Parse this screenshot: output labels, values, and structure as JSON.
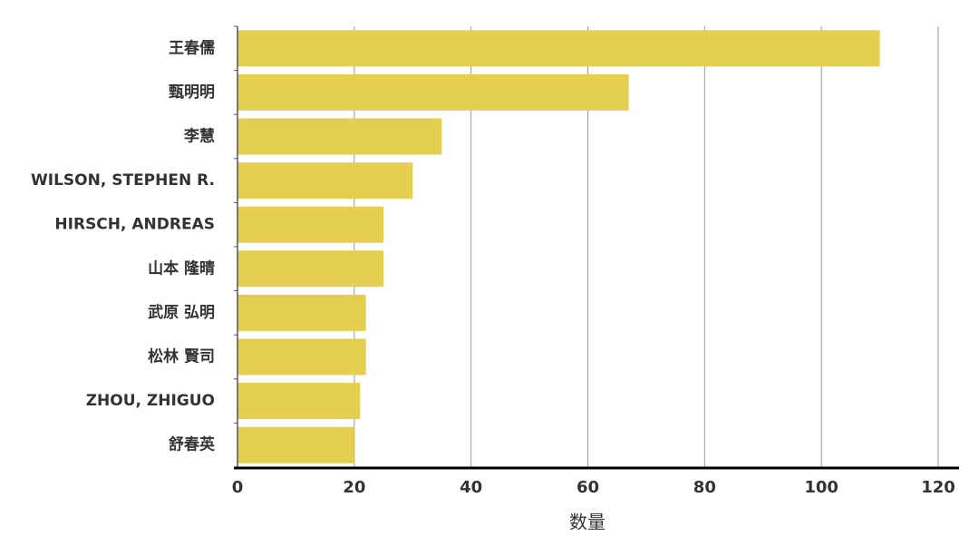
{
  "chart_data": {
    "type": "barh",
    "xlabel": "数量",
    "categories": [
      "王春儒",
      "甄明明",
      "李慧",
      "WILSON, STEPHEN R.",
      "HIRSCH, ANDREAS",
      "山本 隆晴",
      "武原 弘明",
      "松林 賢司",
      "ZHOU, ZHIGUO",
      "舒春英"
    ],
    "values": [
      110,
      67,
      35,
      30,
      25,
      25,
      22,
      22,
      21,
      20
    ],
    "color": "#e5cf50",
    "xlim": [
      0,
      120
    ],
    "xticks": [
      0,
      20,
      40,
      60,
      80,
      100,
      120
    ],
    "grid": true
  }
}
